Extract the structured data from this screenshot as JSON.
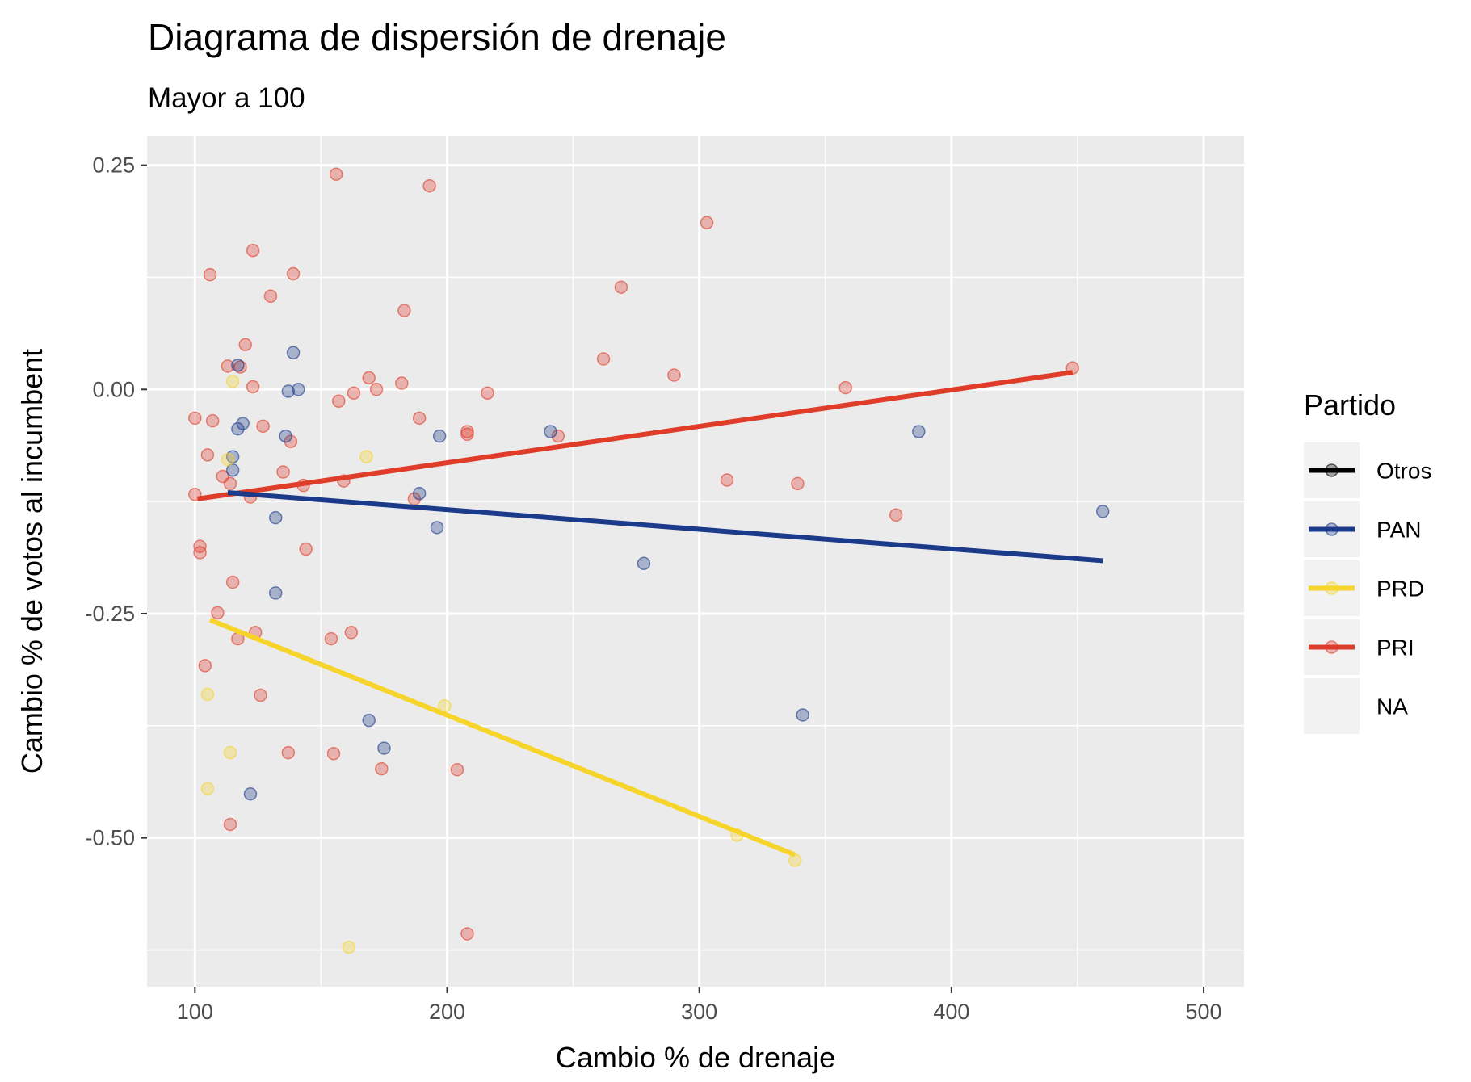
{
  "chart_data": {
    "type": "scatter",
    "title": "Diagrama de dispersión de drenaje",
    "subtitle": "Mayor a 100",
    "xlabel": "Cambio % de drenaje",
    "ylabel": "Cambio % de votos al incumbent",
    "xlim": [
      81,
      516
    ],
    "ylim": [
      -0.666,
      0.283
    ],
    "x_ticks": [
      {
        "value": 100,
        "label": "100"
      },
      {
        "value": 200,
        "label": "200"
      },
      {
        "value": 300,
        "label": "300"
      },
      {
        "value": 400,
        "label": "400"
      },
      {
        "value": 500,
        "label": "500"
      }
    ],
    "y_ticks": [
      {
        "value": 0.25,
        "label": "0.25"
      },
      {
        "value": 0.0,
        "label": "0.00"
      },
      {
        "value": -0.25,
        "label": "-0.25"
      },
      {
        "value": -0.5,
        "label": "-0.50"
      }
    ],
    "grid": true,
    "legend": {
      "title": "Partido",
      "position": "right",
      "entries": [
        {
          "key": "Otros",
          "label": "Otros",
          "color": "#000000"
        },
        {
          "key": "PAN",
          "label": "PAN",
          "color": "#1b3a8a"
        },
        {
          "key": "PRD",
          "label": "PRD",
          "color": "#f7d42a"
        },
        {
          "key": "PRI",
          "label": "PRI",
          "color": "#e03c2a"
        },
        {
          "key": "NA",
          "label": "NA",
          "color": ""
        }
      ]
    },
    "series": [
      {
        "key": "PRI",
        "color": "#e03c2a",
        "points": [
          [
            156,
            0.24
          ],
          [
            193,
            0.227
          ],
          [
            303,
            0.186
          ],
          [
            123,
            0.155
          ],
          [
            106,
            0.128
          ],
          [
            139,
            0.129
          ],
          [
            269,
            0.114
          ],
          [
            130,
            0.104
          ],
          [
            183,
            0.088
          ],
          [
            120,
            0.05
          ],
          [
            262,
            0.034
          ],
          [
            113,
            0.026
          ],
          [
            118,
            0.025
          ],
          [
            290,
            0.016
          ],
          [
            169,
            0.013
          ],
          [
            182,
            0.007
          ],
          [
            123,
            0.003
          ],
          [
            358,
            0.002
          ],
          [
            172,
            0.0
          ],
          [
            163,
            -0.004
          ],
          [
            216,
            -0.004
          ],
          [
            157,
            -0.013
          ],
          [
            100,
            -0.032
          ],
          [
            107,
            -0.035
          ],
          [
            189,
            -0.032
          ],
          [
            127,
            -0.041
          ],
          [
            208,
            -0.047
          ],
          [
            208,
            -0.05
          ],
          [
            244,
            -0.052
          ],
          [
            138,
            -0.058
          ],
          [
            105,
            -0.073
          ],
          [
            111,
            -0.097
          ],
          [
            135,
            -0.092
          ],
          [
            114,
            -0.105
          ],
          [
            143,
            -0.107
          ],
          [
            159,
            -0.102
          ],
          [
            311,
            -0.101
          ],
          [
            339,
            -0.105
          ],
          [
            100,
            -0.117
          ],
          [
            122,
            -0.12
          ],
          [
            187,
            -0.122
          ],
          [
            378,
            -0.14
          ],
          [
            102,
            -0.175
          ],
          [
            102,
            -0.182
          ],
          [
            144,
            -0.178
          ],
          [
            115,
            -0.215
          ],
          [
            109,
            -0.249
          ],
          [
            124,
            -0.271
          ],
          [
            117,
            -0.278
          ],
          [
            154,
            -0.278
          ],
          [
            162,
            -0.271
          ],
          [
            104,
            -0.308
          ],
          [
            126,
            -0.341
          ],
          [
            137,
            -0.405
          ],
          [
            155,
            -0.406
          ],
          [
            174,
            -0.423
          ],
          [
            204,
            -0.424
          ],
          [
            114,
            -0.485
          ],
          [
            208,
            -0.607
          ],
          [
            448,
            0.024
          ]
        ]
      },
      {
        "key": "PAN",
        "color": "#1b3a8a",
        "points": [
          [
            139,
            0.041
          ],
          [
            117,
            0.027
          ],
          [
            141,
            0.0
          ],
          [
            137,
            -0.002
          ],
          [
            119,
            -0.038
          ],
          [
            117,
            -0.044
          ],
          [
            136,
            -0.052
          ],
          [
            197,
            -0.052
          ],
          [
            241,
            -0.047
          ],
          [
            387,
            -0.047
          ],
          [
            115,
            -0.075
          ],
          [
            115,
            -0.09
          ],
          [
            189,
            -0.116
          ],
          [
            460,
            -0.136
          ],
          [
            132,
            -0.143
          ],
          [
            196,
            -0.154
          ],
          [
            278,
            -0.194
          ],
          [
            132,
            -0.227
          ],
          [
            169,
            -0.369
          ],
          [
            175,
            -0.4
          ],
          [
            341,
            -0.363
          ],
          [
            122,
            -0.451
          ]
        ]
      },
      {
        "key": "PRD",
        "color": "#f7d42a",
        "points": [
          [
            115,
            0.009
          ],
          [
            168,
            -0.075
          ],
          [
            113,
            -0.078
          ],
          [
            105,
            -0.34
          ],
          [
            199,
            -0.353
          ],
          [
            114,
            -0.405
          ],
          [
            105,
            -0.445
          ],
          [
            315,
            -0.497
          ],
          [
            338,
            -0.525
          ],
          [
            161,
            -0.622
          ]
        ]
      }
    ],
    "trend_lines": [
      {
        "key": "PRI",
        "color": "#e03c2a",
        "x": [
          101,
          448
        ],
        "y": [
          -0.122,
          0.019
        ]
      },
      {
        "key": "PAN",
        "color": "#1b3a8a",
        "x": [
          113,
          460
        ],
        "y": [
          -0.115,
          -0.191
        ]
      },
      {
        "key": "PRD",
        "color": "#f7d42a",
        "x": [
          106,
          338
        ],
        "y": [
          -0.257,
          -0.519
        ]
      }
    ]
  }
}
